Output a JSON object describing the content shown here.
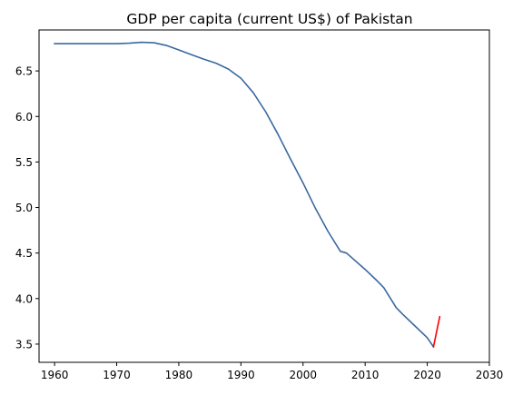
{
  "chart_data": {
    "type": "line",
    "title": "GDP per capita (current US$) of Pakistan",
    "xlabel": "",
    "ylabel": "",
    "xlim": [
      1957.5,
      2030
    ],
    "ylim": [
      3.3,
      6.95
    ],
    "grid": false,
    "legend": "none",
    "x_ticks": [
      1960,
      1970,
      1980,
      1990,
      2000,
      2010,
      2020,
      2030
    ],
    "x_tick_labels": [
      "1960",
      "1970",
      "1980",
      "1990",
      "2000",
      "2010",
      "2020",
      "2030"
    ],
    "y_ticks": [
      3.5,
      4.0,
      4.5,
      5.0,
      5.5,
      6.0,
      6.5
    ],
    "y_tick_labels": [
      "3.5",
      "4.0",
      "4.5",
      "5.0",
      "5.5",
      "6.0",
      "6.5"
    ],
    "series": [
      {
        "name": "",
        "color": "#3a68a1",
        "x": [
          1960,
          1962,
          1964,
          1966,
          1968,
          1970,
          1972,
          1974,
          1976,
          1978,
          1980,
          1982,
          1984,
          1986,
          1988,
          1990,
          1992,
          1994,
          1996,
          1998,
          2000,
          2002,
          2004,
          2006,
          2007,
          2008,
          2010,
          2012,
          2013,
          2014,
          2015,
          2016,
          2018,
          2020,
          2021
        ],
        "y": [
          6.8,
          6.8,
          6.8,
          6.8,
          6.8,
          6.8,
          6.805,
          6.815,
          6.81,
          6.78,
          6.73,
          6.68,
          6.63,
          6.585,
          6.52,
          6.42,
          6.26,
          6.05,
          5.8,
          5.53,
          5.27,
          4.99,
          4.74,
          4.52,
          4.5,
          4.44,
          4.32,
          4.19,
          4.12,
          4.01,
          3.9,
          3.83,
          3.7,
          3.57,
          3.47
        ]
      },
      {
        "name": "",
        "color": "#ff0000",
        "x": [
          2021,
          2022
        ],
        "y": [
          3.47,
          3.8
        ]
      }
    ]
  }
}
